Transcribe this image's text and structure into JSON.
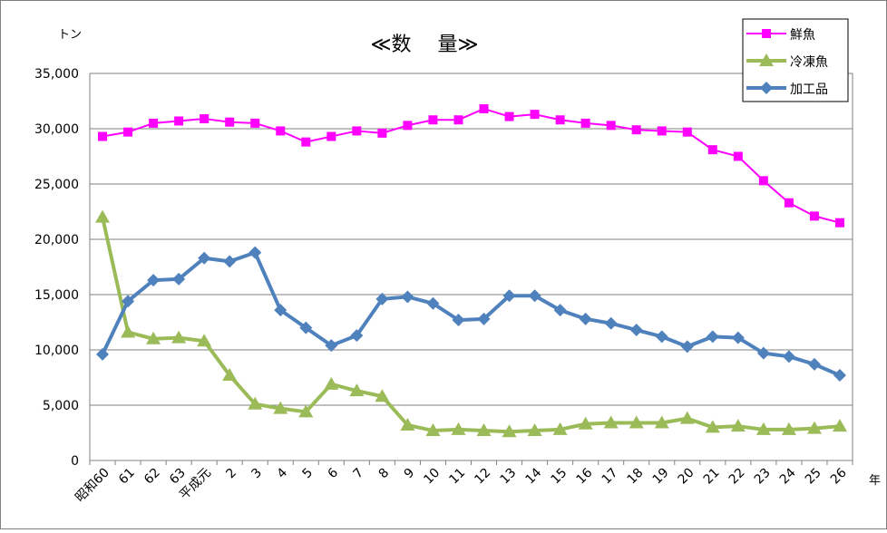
{
  "chart_data": {
    "type": "line",
    "title": "≪数　 量≫",
    "y_unit_label": "トン",
    "x_unit_label": "年",
    "categories": [
      "昭和60",
      "61",
      "62",
      "63",
      "平成元",
      "2",
      "3",
      "4",
      "5",
      "6",
      "7",
      "8",
      "9",
      "10",
      "11",
      "12",
      "13",
      "14",
      "15",
      "16",
      "17",
      "18",
      "19",
      "20",
      "21",
      "22",
      "23",
      "24",
      "25",
      "26"
    ],
    "y_ticks": [
      "0",
      "5,000",
      "10,000",
      "15,000",
      "20,000",
      "25,000",
      "30,000",
      "35,000"
    ],
    "ylim": [
      0,
      35000
    ],
    "grid": true,
    "legend_position": "top-right",
    "series": [
      {
        "name": "鮮魚",
        "color": "#ff00ff",
        "marker": "square",
        "values": [
          29300,
          29700,
          30500,
          30700,
          30900,
          30600,
          30500,
          29800,
          28800,
          29300,
          29800,
          29600,
          30300,
          30800,
          30800,
          31800,
          31100,
          31300,
          30800,
          30500,
          30300,
          29900,
          29800,
          29700,
          28100,
          27500,
          25300,
          23300,
          22100,
          21500
        ]
      },
      {
        "name": "冷凍魚",
        "color": "#9bbb59",
        "marker": "triangle",
        "values": [
          22000,
          11600,
          11000,
          11100,
          10800,
          7700,
          5100,
          4700,
          4400,
          6900,
          6300,
          5800,
          3200,
          2700,
          2800,
          2700,
          2600,
          2700,
          2800,
          3300,
          3400,
          3400,
          3400,
          3800,
          3000,
          3100,
          2800,
          2800,
          2900,
          3100
        ]
      },
      {
        "name": "加工品",
        "color": "#4f81bd",
        "marker": "diamond",
        "values": [
          9600,
          14400,
          16300,
          16400,
          18300,
          18000,
          18800,
          13600,
          12000,
          10400,
          11300,
          14600,
          14800,
          14200,
          12700,
          12800,
          14900,
          14900,
          13600,
          12800,
          12400,
          11800,
          11200,
          10300,
          11200,
          11100,
          9700,
          9400,
          8700,
          7700
        ]
      }
    ]
  }
}
